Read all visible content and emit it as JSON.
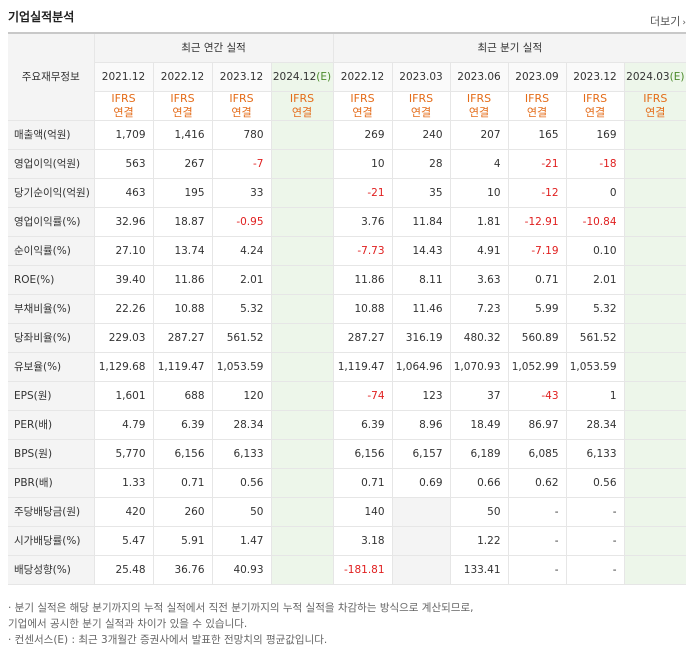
{
  "header": {
    "title": "기업실적분석",
    "more_label": "더보기",
    "more_arrow": "›"
  },
  "table": {
    "corner_label": "주요재무정보",
    "group_annual": "최근 연간 실적",
    "group_quarter": "최근 분기 실적",
    "annual_periods": [
      {
        "label": "2021.12",
        "est": ""
      },
      {
        "label": "2022.12",
        "est": ""
      },
      {
        "label": "2023.12",
        "est": ""
      },
      {
        "label": "2024.12",
        "est": "(E)"
      }
    ],
    "quarter_periods": [
      {
        "label": "2022.12",
        "est": ""
      },
      {
        "label": "2023.03",
        "est": ""
      },
      {
        "label": "2023.06",
        "est": ""
      },
      {
        "label": "2023.09",
        "est": ""
      },
      {
        "label": "2023.12",
        "est": ""
      },
      {
        "label": "2024.03",
        "est": "(E)"
      }
    ],
    "basis_top": "IFRS",
    "basis_bottom": "연결",
    "rows": [
      {
        "label": "매출액(억원)",
        "values": [
          "1,709",
          "1,416",
          "780",
          "",
          "269",
          "240",
          "207",
          "165",
          "169",
          ""
        ]
      },
      {
        "label": "영업이익(억원)",
        "values": [
          "563",
          "267",
          "-7",
          "",
          "10",
          "28",
          "4",
          "-21",
          "-18",
          ""
        ]
      },
      {
        "label": "당기순이익(억원)",
        "values": [
          "463",
          "195",
          "33",
          "",
          "-21",
          "35",
          "10",
          "-12",
          "0",
          ""
        ]
      },
      {
        "label": "영업이익률(%)",
        "values": [
          "32.96",
          "18.87",
          "-0.95",
          "",
          "3.76",
          "11.84",
          "1.81",
          "-12.91",
          "-10.84",
          ""
        ]
      },
      {
        "label": "순이익률(%)",
        "values": [
          "27.10",
          "13.74",
          "4.24",
          "",
          "-7.73",
          "14.43",
          "4.91",
          "-7.19",
          "0.10",
          ""
        ]
      },
      {
        "label": "ROE(%)",
        "values": [
          "39.40",
          "11.86",
          "2.01",
          "",
          "11.86",
          "8.11",
          "3.63",
          "0.71",
          "2.01",
          ""
        ]
      },
      {
        "label": "부채비율(%)",
        "values": [
          "22.26",
          "10.88",
          "5.32",
          "",
          "10.88",
          "11.46",
          "7.23",
          "5.99",
          "5.32",
          ""
        ]
      },
      {
        "label": "당좌비율(%)",
        "values": [
          "229.03",
          "287.27",
          "561.52",
          "",
          "287.27",
          "316.19",
          "480.32",
          "560.89",
          "561.52",
          ""
        ]
      },
      {
        "label": "유보율(%)",
        "values": [
          "1,129.68",
          "1,119.47",
          "1,053.59",
          "",
          "1,119.47",
          "1,064.96",
          "1,070.93",
          "1,052.99",
          "1,053.59",
          ""
        ]
      },
      {
        "label": "EPS(원)",
        "values": [
          "1,601",
          "688",
          "120",
          "",
          "-74",
          "123",
          "37",
          "-43",
          "1",
          ""
        ]
      },
      {
        "label": "PER(배)",
        "values": [
          "4.79",
          "6.39",
          "28.34",
          "",
          "6.39",
          "8.96",
          "18.49",
          "86.97",
          "28.34",
          ""
        ]
      },
      {
        "label": "BPS(원)",
        "values": [
          "5,770",
          "6,156",
          "6,133",
          "",
          "6,156",
          "6,157",
          "6,189",
          "6,085",
          "6,133",
          ""
        ]
      },
      {
        "label": "PBR(배)",
        "values": [
          "1.33",
          "0.71",
          "0.56",
          "",
          "0.71",
          "0.69",
          "0.66",
          "0.62",
          "0.56",
          ""
        ]
      },
      {
        "label": "주당배당금(원)",
        "values": [
          "420",
          "260",
          "50",
          "",
          "140",
          null,
          "50",
          "-",
          "-",
          ""
        ]
      },
      {
        "label": "시가배당률(%)",
        "values": [
          "5.47",
          "5.91",
          "1.47",
          "",
          "3.18",
          null,
          "1.22",
          "-",
          "-",
          ""
        ]
      },
      {
        "label": "배당성향(%)",
        "values": [
          "25.48",
          "36.76",
          "40.93",
          "",
          "-181.81",
          null,
          "133.41",
          "-",
          "-",
          ""
        ]
      }
    ]
  },
  "notes": [
    "· 분기 실적은 해당 분기까지의 누적 실적에서 직전 분기까지의 누적 실적을 차감하는 방식으로 계산되므로,",
    "  기업에서 공시한 분기 실적과 차이가 있을 수 있습니다.",
    "· 컨센서스(E) : 최근 3개월간 증권사에서 발표한 전망치의 평균값입니다."
  ],
  "colors": {
    "negative": "#e02020",
    "ifrs": "#e46c19",
    "estimate_bg": "#edf6ea"
  }
}
